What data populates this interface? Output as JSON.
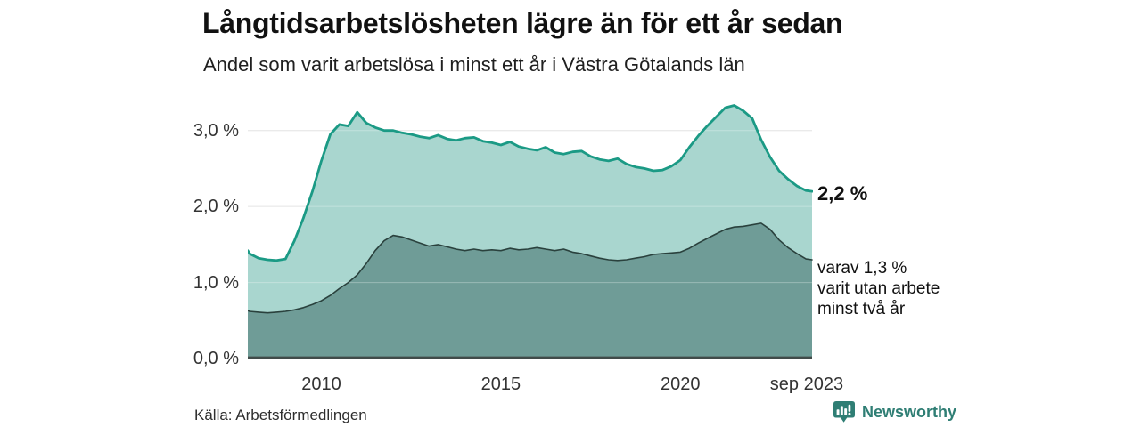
{
  "header": {
    "title": "Långtidsarbetslösheten lägre än för ett år sedan",
    "subtitle": "Andel som varit arbetslösa i minst ett år i Västra Götalands län"
  },
  "chart_data": {
    "type": "area",
    "title": "Långtidsarbetslösheten lägre än för ett år sedan",
    "subtitle": "Andel som varit arbetslösa i minst ett år i Västra Götalands län",
    "x_range": [
      2007.95,
      2023.67
    ],
    "ylim": [
      0,
      3.43
    ],
    "grid": true,
    "grid_color": "#dcdcdc",
    "baseline_color": "#414b4a",
    "y_ticks": [
      {
        "value": 0,
        "label": "0,0 %"
      },
      {
        "value": 1,
        "label": "1,0 %"
      },
      {
        "value": 2,
        "label": "2,0 %"
      },
      {
        "value": 3,
        "label": "3,0 %"
      }
    ],
    "x_ticks": [
      {
        "value": 2010,
        "label": "2010"
      },
      {
        "value": 2015,
        "label": "2015"
      },
      {
        "value": 2020,
        "label": "2020"
      },
      {
        "value": 2023.52,
        "label": "sep 2023"
      }
    ],
    "x": [
      2007.95,
      2008.0,
      2008.25,
      2008.5,
      2008.75,
      2009.0,
      2009.25,
      2009.5,
      2009.75,
      2010.0,
      2010.25,
      2010.5,
      2010.75,
      2011.0,
      2011.25,
      2011.5,
      2011.75,
      2012.0,
      2012.25,
      2012.5,
      2012.75,
      2013.0,
      2013.25,
      2013.5,
      2013.75,
      2014.0,
      2014.25,
      2014.5,
      2014.75,
      2015.0,
      2015.25,
      2015.5,
      2015.75,
      2016.0,
      2016.25,
      2016.5,
      2016.75,
      2017.0,
      2017.25,
      2017.5,
      2017.75,
      2018.0,
      2018.25,
      2018.5,
      2018.75,
      2019.0,
      2019.25,
      2019.5,
      2019.75,
      2020.0,
      2020.25,
      2020.5,
      2020.75,
      2021.0,
      2021.25,
      2021.5,
      2021.75,
      2022.0,
      2022.25,
      2022.5,
      2022.75,
      2023.0,
      2023.25,
      2023.5,
      2023.67
    ],
    "series": [
      {
        "name": "Arbetslösa minst ett år",
        "line_color": "#1b9a85",
        "fill_color": "#a9d6cf",
        "line_width": 2.8,
        "end_value": "2,2 %",
        "values": [
          1.42,
          1.38,
          1.32,
          1.3,
          1.29,
          1.31,
          1.55,
          1.85,
          2.2,
          2.6,
          2.95,
          3.08,
          3.06,
          3.24,
          3.1,
          3.04,
          3.0,
          3.0,
          2.97,
          2.95,
          2.92,
          2.9,
          2.94,
          2.89,
          2.87,
          2.9,
          2.91,
          2.86,
          2.84,
          2.81,
          2.85,
          2.79,
          2.76,
          2.74,
          2.78,
          2.71,
          2.69,
          2.72,
          2.73,
          2.66,
          2.62,
          2.6,
          2.63,
          2.56,
          2.52,
          2.5,
          2.47,
          2.48,
          2.53,
          2.61,
          2.78,
          2.93,
          3.06,
          3.18,
          3.3,
          3.33,
          3.26,
          3.16,
          2.88,
          2.65,
          2.47,
          2.36,
          2.27,
          2.21,
          2.2
        ]
      },
      {
        "name": "Utan arbete minst två år",
        "line_color": "#2a413d",
        "fill_color": "#6f9c97",
        "line_width": 1.6,
        "end_value": "1,3 %",
        "values": [
          0.63,
          0.62,
          0.61,
          0.6,
          0.61,
          0.62,
          0.64,
          0.67,
          0.71,
          0.76,
          0.83,
          0.92,
          1.0,
          1.1,
          1.25,
          1.42,
          1.55,
          1.62,
          1.6,
          1.56,
          1.52,
          1.48,
          1.5,
          1.47,
          1.44,
          1.42,
          1.44,
          1.42,
          1.43,
          1.42,
          1.45,
          1.43,
          1.44,
          1.46,
          1.44,
          1.42,
          1.44,
          1.4,
          1.38,
          1.35,
          1.32,
          1.3,
          1.29,
          1.3,
          1.32,
          1.34,
          1.37,
          1.38,
          1.39,
          1.4,
          1.45,
          1.52,
          1.58,
          1.64,
          1.7,
          1.73,
          1.74,
          1.76,
          1.78,
          1.7,
          1.56,
          1.46,
          1.38,
          1.31,
          1.3
        ]
      }
    ],
    "annotations": {
      "end_value_label": "2,2 %",
      "sub_label": "varav 1,3 %\nvarit utan arbete\nminst två år"
    }
  },
  "footer": {
    "source": "Källa: Arbetsförmedlingen",
    "brand": "Newsworthy",
    "brand_color": "#2f7e74"
  }
}
